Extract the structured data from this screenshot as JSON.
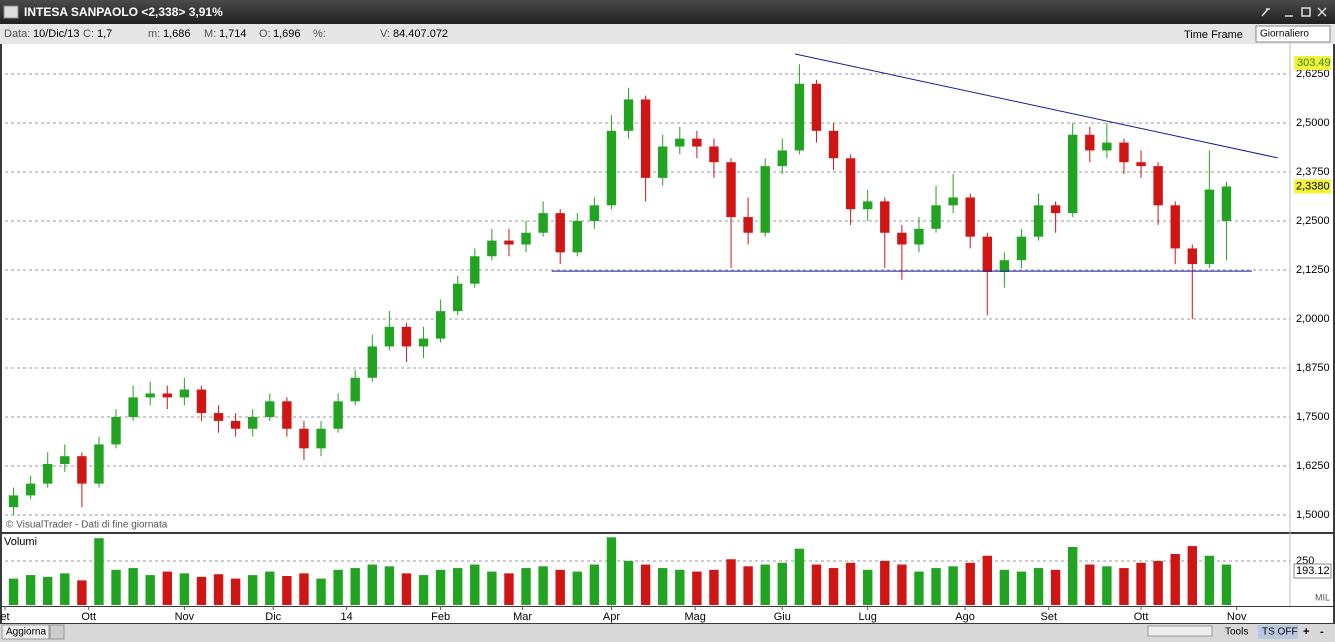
{
  "window": {
    "title": "INTESA SANPAOLO <2,338> 3,91%"
  },
  "info_bar": {
    "date_label": "Data:",
    "date": "10/Dic/13",
    "close_label": "C:",
    "close": "1,7",
    "min_label": "m:",
    "min": "1,686",
    "max_label": "M:",
    "max": "1,714",
    "open_label": "O:",
    "open": "1,696",
    "pct_label": "%:",
    "volume_label": "V:",
    "volume": "84.407.072",
    "time_frame": "Time Frame",
    "period": "Giornaliero"
  },
  "toolbar": {
    "refresh": "Aggiorna",
    "tools": "Tools",
    "ts": "TS OFF",
    "plus": "+",
    "minus": "-"
  },
  "chart_data": {
    "type": "candlestick",
    "annotation": "© VisualTrader - Dati di fine giornata",
    "top_label": "303.49",
    "last_price": {
      "value": 2.338,
      "label": "2,3380"
    },
    "up_color": "#22a322",
    "down_color": "#d01515",
    "grid": true,
    "xlim": [
      -0.5,
      71.5
    ],
    "xticks": [
      {
        "value": -0.5,
        "label": "et"
      },
      {
        "value": 4.4,
        "label": "Ott"
      },
      {
        "value": 10.0,
        "label": "Nov"
      },
      {
        "value": 15.2,
        "label": "Dic"
      },
      {
        "value": 19.5,
        "label": "14"
      },
      {
        "value": 25.0,
        "label": "Feb"
      },
      {
        "value": 29.8,
        "label": "Mar"
      },
      {
        "value": 35.0,
        "label": "Apr"
      },
      {
        "value": 39.9,
        "label": "Mag"
      },
      {
        "value": 45.0,
        "label": "Giu"
      },
      {
        "value": 50.0,
        "label": "Lug"
      },
      {
        "value": 55.7,
        "label": "Ago"
      },
      {
        "value": 60.6,
        "label": "Set"
      },
      {
        "value": 66.0,
        "label": "Ott"
      },
      {
        "value": 71.6,
        "label": "Nov"
      }
    ],
    "ylim": [
      1.4617,
      2.7015
    ],
    "yticks": [
      {
        "value": 1.5,
        "label": "1,5000"
      },
      {
        "value": 1.625,
        "label": "1,6250"
      },
      {
        "value": 1.75,
        "label": "1,7500"
      },
      {
        "value": 1.875,
        "label": "1,8750"
      },
      {
        "value": 2,
        "label": "2,0000"
      },
      {
        "value": 2.125,
        "label": "2,1250"
      },
      {
        "value": 2.25,
        "label": "2,2500"
      },
      {
        "value": 2.375,
        "label": "2,3750"
      },
      {
        "value": 2.5,
        "label": "2,5000"
      },
      {
        "value": 2.625,
        "label": "2,6250"
      }
    ],
    "candles": [
      [
        1.52,
        1.57,
        1.5,
        1.55
      ],
      [
        1.55,
        1.6,
        1.54,
        1.58
      ],
      [
        1.58,
        1.66,
        1.57,
        1.63
      ],
      [
        1.63,
        1.68,
        1.61,
        1.65
      ],
      [
        1.65,
        1.66,
        1.52,
        1.58
      ],
      [
        1.58,
        1.7,
        1.57,
        1.68
      ],
      [
        1.68,
        1.77,
        1.67,
        1.75
      ],
      [
        1.75,
        1.83,
        1.74,
        1.8
      ],
      [
        1.8,
        1.84,
        1.78,
        1.81
      ],
      [
        1.81,
        1.83,
        1.77,
        1.8
      ],
      [
        1.8,
        1.85,
        1.78,
        1.82
      ],
      [
        1.82,
        1.83,
        1.74,
        1.76
      ],
      [
        1.76,
        1.78,
        1.71,
        1.74
      ],
      [
        1.74,
        1.76,
        1.7,
        1.72
      ],
      [
        1.72,
        1.77,
        1.7,
        1.75
      ],
      [
        1.75,
        1.81,
        1.74,
        1.79
      ],
      [
        1.79,
        1.8,
        1.7,
        1.72
      ],
      [
        1.72,
        1.74,
        1.64,
        1.67
      ],
      [
        1.67,
        1.74,
        1.65,
        1.72
      ],
      [
        1.72,
        1.81,
        1.71,
        1.79
      ],
      [
        1.79,
        1.87,
        1.78,
        1.85
      ],
      [
        1.85,
        1.96,
        1.84,
        1.93
      ],
      [
        1.93,
        2.02,
        1.92,
        1.98
      ],
      [
        1.98,
        1.99,
        1.89,
        1.93
      ],
      [
        1.93,
        1.98,
        1.9,
        1.95
      ],
      [
        1.95,
        2.05,
        1.94,
        2.02
      ],
      [
        2.02,
        2.11,
        2.01,
        2.09
      ],
      [
        2.09,
        2.18,
        2.08,
        2.16
      ],
      [
        2.16,
        2.23,
        2.15,
        2.2
      ],
      [
        2.2,
        2.23,
        2.16,
        2.19
      ],
      [
        2.19,
        2.25,
        2.17,
        2.22
      ],
      [
        2.22,
        2.3,
        2.21,
        2.27
      ],
      [
        2.27,
        2.28,
        2.14,
        2.17
      ],
      [
        2.17,
        2.27,
        2.16,
        2.25
      ],
      [
        2.25,
        2.31,
        2.23,
        2.29
      ],
      [
        2.29,
        2.52,
        2.28,
        2.48
      ],
      [
        2.48,
        2.59,
        2.46,
        2.56
      ],
      [
        2.56,
        2.57,
        2.3,
        2.36
      ],
      [
        2.36,
        2.47,
        2.34,
        2.44
      ],
      [
        2.44,
        2.49,
        2.42,
        2.46
      ],
      [
        2.46,
        2.48,
        2.41,
        2.44
      ],
      [
        2.44,
        2.46,
        2.36,
        2.4
      ],
      [
        2.4,
        2.41,
        2.13,
        2.26
      ],
      [
        2.26,
        2.31,
        2.19,
        2.22
      ],
      [
        2.22,
        2.41,
        2.21,
        2.39
      ],
      [
        2.39,
        2.46,
        2.37,
        2.43
      ],
      [
        2.43,
        2.65,
        2.42,
        2.6
      ],
      [
        2.6,
        2.61,
        2.45,
        2.48
      ],
      [
        2.48,
        2.5,
        2.38,
        2.41
      ],
      [
        2.41,
        2.42,
        2.24,
        2.28
      ],
      [
        2.28,
        2.33,
        2.25,
        2.3
      ],
      [
        2.3,
        2.31,
        2.13,
        2.22
      ],
      [
        2.22,
        2.24,
        2.1,
        2.19
      ],
      [
        2.19,
        2.26,
        2.17,
        2.23
      ],
      [
        2.23,
        2.34,
        2.22,
        2.29
      ],
      [
        2.29,
        2.37,
        2.27,
        2.31
      ],
      [
        2.31,
        2.32,
        2.18,
        2.21
      ],
      [
        2.21,
        2.22,
        2.01,
        2.12
      ],
      [
        2.12,
        2.17,
        2.08,
        2.15
      ],
      [
        2.15,
        2.23,
        2.13,
        2.21
      ],
      [
        2.21,
        2.32,
        2.2,
        2.29
      ],
      [
        2.29,
        2.3,
        2.22,
        2.27
      ],
      [
        2.27,
        2.5,
        2.26,
        2.47
      ],
      [
        2.47,
        2.49,
        2.4,
        2.43
      ],
      [
        2.43,
        2.5,
        2.41,
        2.45
      ],
      [
        2.45,
        2.46,
        2.37,
        2.4
      ],
      [
        2.4,
        2.43,
        2.36,
        2.39
      ],
      [
        2.39,
        2.4,
        2.24,
        2.29
      ],
      [
        2.29,
        2.3,
        2.14,
        2.18
      ],
      [
        2.18,
        2.19,
        2.0,
        2.14
      ],
      [
        2.14,
        2.43,
        2.13,
        2.33
      ],
      [
        2.25,
        2.35,
        2.15,
        2.338
      ]
    ],
    "trendlines": [
      {
        "color": "#1a1a9a",
        "x": [
          45.75,
          74.0
        ],
        "y": [
          2.676,
          2.411
        ]
      },
      {
        "color": "#1a1a9a",
        "x": [
          31.5,
          72.5
        ],
        "y": [
          2.122,
          2.122
        ]
      }
    ],
    "volume": {
      "title": "Volumi",
      "unit": "MIL",
      "ylim": [
        0,
        398
      ],
      "yticks": [
        250
      ],
      "last": 193.12,
      "values": [
        150,
        170,
        160,
        180,
        140,
        380,
        200,
        210,
        170,
        190,
        180,
        160,
        175,
        150,
        170,
        190,
        165,
        180,
        150,
        200,
        210,
        230,
        220,
        180,
        170,
        200,
        210,
        230,
        190,
        180,
        210,
        220,
        200,
        190,
        230,
        385,
        250,
        230,
        210,
        200,
        190,
        200,
        260,
        220,
        230,
        240,
        320,
        230,
        210,
        240,
        200,
        250,
        230,
        190,
        210,
        220,
        240,
        280,
        200,
        190,
        210,
        200,
        330,
        230,
        220,
        210,
        240,
        250,
        290,
        335,
        280,
        230
      ]
    }
  }
}
